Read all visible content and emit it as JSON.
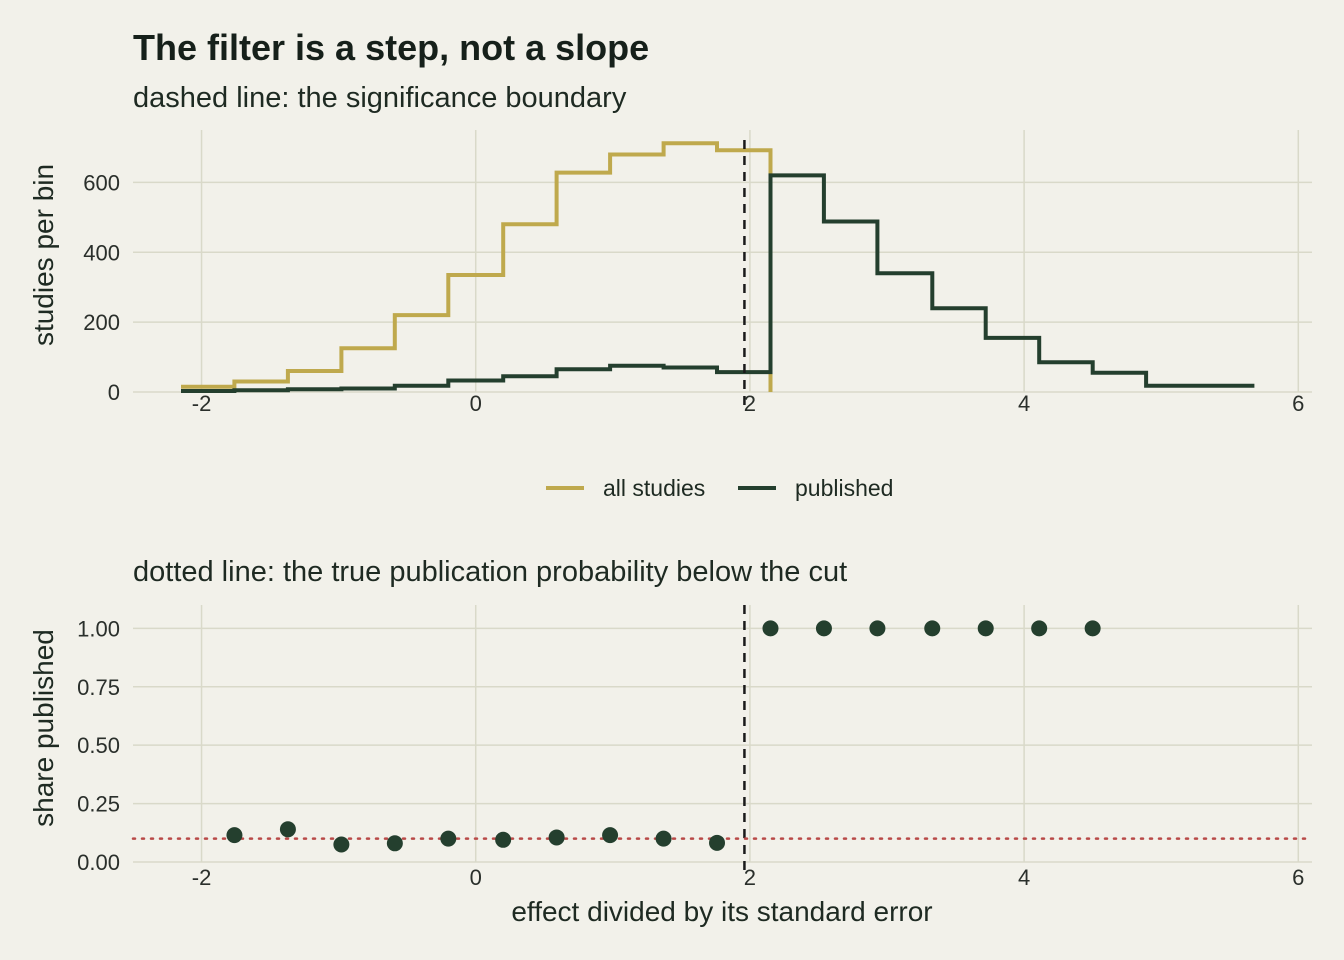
{
  "chart_data": [
    {
      "type": "line",
      "title": "The filter is a step, not a slope",
      "subtitle": "dashed line: the significance boundary",
      "xlabel": "",
      "ylabel": "studies per bin",
      "xlim": [
        -2.5,
        6.1
      ],
      "ylim": [
        0,
        750
      ],
      "x_ticks": [
        -2,
        0,
        2,
        4,
        6
      ],
      "y_ticks": [
        0,
        200,
        400,
        600
      ],
      "grid": true,
      "legend_position": "bottom",
      "reference_line": {
        "axis": "x",
        "value": 1.96,
        "style": "dashed"
      },
      "bin_edges": [
        -2.15,
        -1.76,
        -1.37,
        -0.98,
        -0.59,
        -0.2,
        0.2,
        0.59,
        0.98,
        1.37,
        1.76,
        2.15,
        2.54,
        2.93,
        3.33,
        3.72,
        4.11,
        4.5,
        4.89,
        5.28,
        5.68
      ],
      "series": [
        {
          "name": "all studies",
          "color": "#bfa94d",
          "values": [
            15,
            30,
            60,
            125,
            220,
            335,
            480,
            628,
            680,
            712,
            692,
            null,
            null,
            null,
            null,
            null,
            null,
            null,
            null,
            null
          ]
        },
        {
          "name": "published",
          "color": "#243f2e",
          "values": [
            3,
            5,
            8,
            10,
            18,
            33,
            45,
            65,
            75,
            70,
            57,
            620,
            488,
            340,
            240,
            155,
            85,
            55,
            18,
            18
          ]
        }
      ]
    },
    {
      "type": "scatter",
      "title": "",
      "subtitle": "dotted line: the true publication probability below the cut",
      "xlabel": "effect divided by its standard error",
      "ylabel": "share published",
      "xlim": [
        -2.5,
        6.1
      ],
      "ylim": [
        0,
        1.1
      ],
      "x_ticks": [
        -2,
        0,
        2,
        4,
        6
      ],
      "y_ticks": [
        "0.00",
        "0.25",
        "0.50",
        "0.75",
        "1.00"
      ],
      "grid": true,
      "reference_lines": [
        {
          "axis": "x",
          "value": 1.96,
          "style": "dashed",
          "color": "#1a1a1a"
        },
        {
          "axis": "y",
          "value": 0.1,
          "style": "dotted",
          "color": "#b94a48"
        }
      ],
      "point_color": "#243f2e",
      "points": [
        {
          "x": -1.76,
          "y": 0.115
        },
        {
          "x": -1.37,
          "y": 0.14
        },
        {
          "x": -0.98,
          "y": 0.075
        },
        {
          "x": -0.59,
          "y": 0.08
        },
        {
          "x": -0.2,
          "y": 0.1
        },
        {
          "x": 0.2,
          "y": 0.095
        },
        {
          "x": 0.59,
          "y": 0.105
        },
        {
          "x": 0.98,
          "y": 0.115
        },
        {
          "x": 1.37,
          "y": 0.1
        },
        {
          "x": 1.76,
          "y": 0.082
        },
        {
          "x": 2.15,
          "y": 1.0
        },
        {
          "x": 2.54,
          "y": 1.0
        },
        {
          "x": 2.93,
          "y": 1.0
        },
        {
          "x": 3.33,
          "y": 1.0
        },
        {
          "x": 3.72,
          "y": 1.0
        },
        {
          "x": 4.11,
          "y": 1.0
        },
        {
          "x": 4.5,
          "y": 1.0
        }
      ]
    }
  ]
}
